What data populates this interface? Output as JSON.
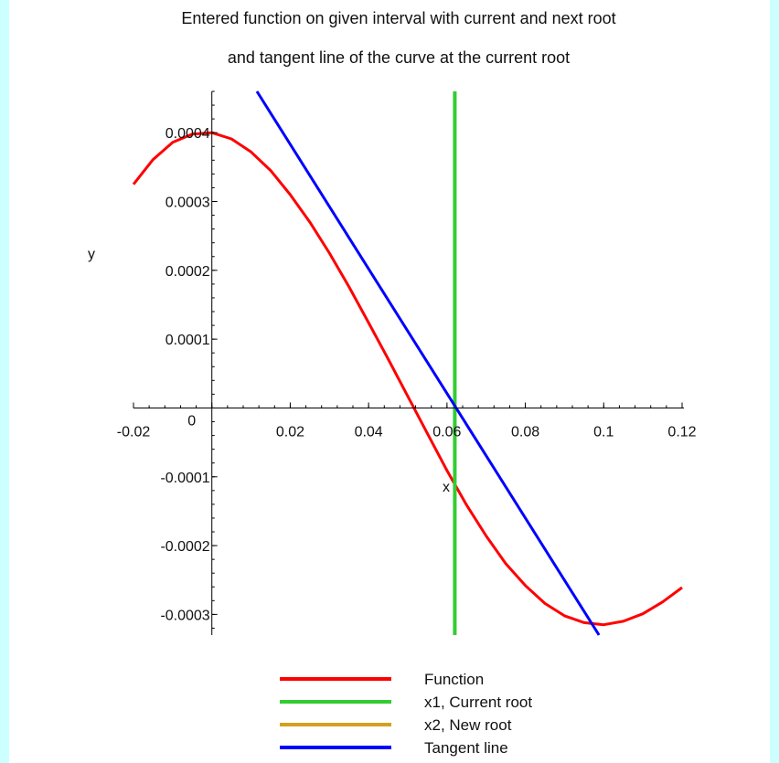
{
  "chart_data": {
    "type": "line",
    "title": [
      "Entered function on given interval with current and next root",
      "and tangent line of the curve at the current root"
    ],
    "xlabel": "x",
    "ylabel": "y",
    "xlim": [
      -0.02,
      0.12
    ],
    "ylim": [
      -0.00033,
      0.00046
    ],
    "x_ticks": [
      {
        "value": -0.02,
        "label": "-0.02"
      },
      {
        "value": 0,
        "label": "0"
      },
      {
        "value": 0.02,
        "label": "0.02"
      },
      {
        "value": 0.04,
        "label": "0.04"
      },
      {
        "value": 0.06,
        "label": "0.06"
      },
      {
        "value": 0.08,
        "label": "0.08"
      },
      {
        "value": 0.1,
        "label": "0.1"
      },
      {
        "value": 0.12,
        "label": "0.12"
      }
    ],
    "y_ticks": [
      {
        "value": 0.0004,
        "label": "0.0004"
      },
      {
        "value": 0.0003,
        "label": "0.0003"
      },
      {
        "value": 0.0002,
        "label": "0.0002"
      },
      {
        "value": 0.0001,
        "label": "0.0001"
      },
      {
        "value": -0.0001,
        "label": "-0.0001"
      },
      {
        "value": -0.0002,
        "label": "-0.0002"
      },
      {
        "value": -0.0003,
        "label": "-0.0003"
      }
    ],
    "grid": false,
    "legend_position": "bottom",
    "series": [
      {
        "name": "Function",
        "color": "#ff0000",
        "kind": "curve",
        "x": [
          -0.02,
          -0.015,
          -0.01,
          -0.005,
          0,
          0.005,
          0.01,
          0.015,
          0.02,
          0.025,
          0.03,
          0.035,
          0.04,
          0.045,
          0.05,
          0.055,
          0.06,
          0.065,
          0.07,
          0.075,
          0.08,
          0.085,
          0.09,
          0.095,
          0.1,
          0.105,
          0.11,
          0.115,
          0.12
        ],
        "y": [
          0.000325,
          0.000361,
          0.000386,
          0.000398,
          0.0004,
          0.000391,
          0.000372,
          0.000345,
          0.00031,
          0.00027,
          0.000225,
          0.000176,
          0.000124,
          7.1e-05,
          1.7e-05,
          -3.7e-05,
          -9.1e-05,
          -0.000141,
          -0.000186,
          -0.000226,
          -0.000258,
          -0.000284,
          -0.000302,
          -0.000312,
          -0.000315,
          -0.00031,
          -0.000299,
          -0.000282,
          -0.000261
        ]
      },
      {
        "name": "x1, Current root",
        "color": "#33cc33",
        "kind": "vertical",
        "x_value": 0.062
      },
      {
        "name": "x2, New root",
        "color": "#d4a020",
        "kind": "legend-only"
      },
      {
        "name": "Tangent line",
        "color": "#0000ff",
        "kind": "line",
        "x": [
          0.0115,
          0.0988
        ],
        "y": [
          0.00046,
          -0.00033
        ]
      }
    ]
  }
}
